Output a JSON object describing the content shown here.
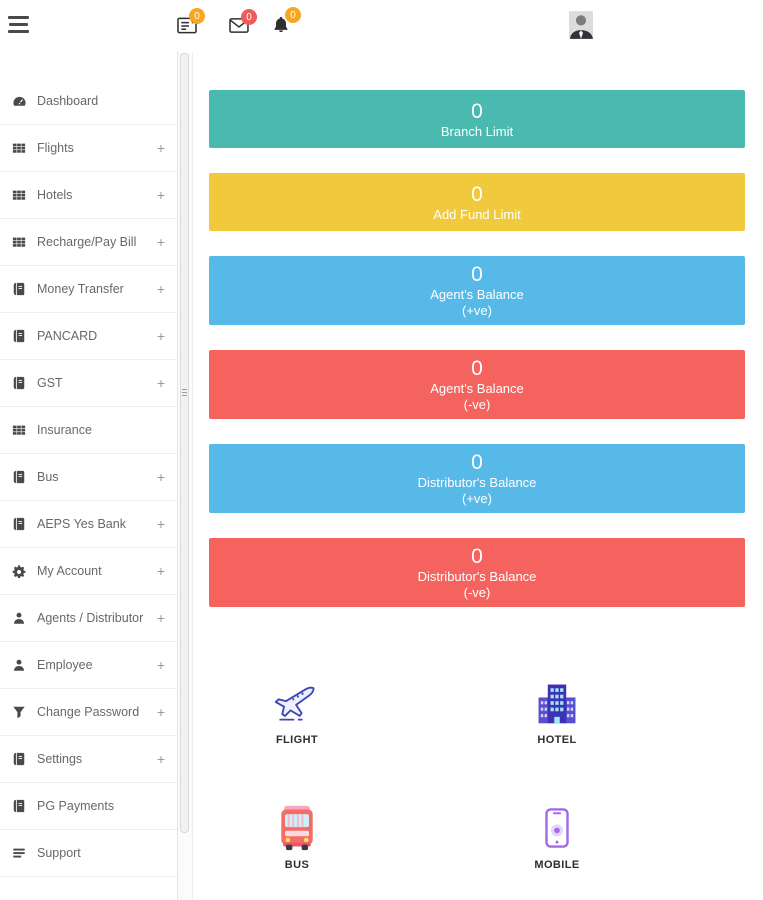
{
  "topbar": {
    "icons": [
      {
        "name": "report-icon",
        "badge": "0",
        "badge_color": "#f5a623"
      },
      {
        "name": "mail-icon",
        "badge": "0",
        "badge_color": "#f15b5b"
      },
      {
        "name": "bell-icon",
        "badge": "0",
        "badge_color": "#f5a623"
      }
    ]
  },
  "sidebar": {
    "expand_symbol": "+",
    "items": [
      {
        "label": "Dashboard",
        "icon": "dashboard-icon",
        "expandable": false
      },
      {
        "label": "Flights",
        "icon": "grid-icon",
        "expandable": true
      },
      {
        "label": "Hotels",
        "icon": "grid-icon",
        "expandable": true
      },
      {
        "label": "Recharge/Pay Bill",
        "icon": "grid-icon",
        "expandable": true
      },
      {
        "label": "Money Transfer",
        "icon": "book-icon",
        "expandable": true
      },
      {
        "label": "PANCARD",
        "icon": "book-icon",
        "expandable": true
      },
      {
        "label": "GST",
        "icon": "book-icon",
        "expandable": true
      },
      {
        "label": "Insurance",
        "icon": "grid-icon",
        "expandable": false
      },
      {
        "label": "Bus",
        "icon": "book-icon",
        "expandable": true
      },
      {
        "label": "AEPS Yes Bank",
        "icon": "book-icon",
        "expandable": true
      },
      {
        "label": "My Account",
        "icon": "gears-icon",
        "expandable": true
      },
      {
        "label": "Agents / Distributor",
        "icon": "user-icon",
        "expandable": true
      },
      {
        "label": "Employee",
        "icon": "user-icon",
        "expandable": true
      },
      {
        "label": "Change Password",
        "icon": "filter-icon",
        "expandable": true
      },
      {
        "label": "Settings",
        "icon": "book-icon",
        "expandable": true
      },
      {
        "label": "PG Payments",
        "icon": "book-icon",
        "expandable": false
      },
      {
        "label": "Support",
        "icon": "support-icon",
        "expandable": false
      }
    ]
  },
  "banners": [
    {
      "value": "0",
      "label_lines": [
        "Branch Limit"
      ],
      "color": "#4ab9af"
    },
    {
      "value": "0",
      "label_lines": [
        "Add Fund Limit"
      ],
      "color": "#f0c93d"
    },
    {
      "value": "0",
      "label_lines": [
        "Agent's Balance",
        "(+ve)"
      ],
      "color": "#57b9e8"
    },
    {
      "value": "0",
      "label_lines": [
        "Agent's Balance",
        "(-ve)"
      ],
      "color": "#f4635e"
    },
    {
      "value": "0",
      "label_lines": [
        "Distributor's Balance",
        "(+ve)"
      ],
      "color": "#57b9e8"
    },
    {
      "value": "0",
      "label_lines": [
        "Distributor's Balance",
        "(-ve)"
      ],
      "color": "#f4635e"
    }
  ],
  "services": [
    {
      "label": "FLIGHT",
      "icon": "flight-icon"
    },
    {
      "label": "HOTEL",
      "icon": "hotel-icon"
    },
    {
      "label": "BUS",
      "icon": "bus-icon"
    },
    {
      "label": "MOBILE",
      "icon": "mobile-icon"
    }
  ]
}
